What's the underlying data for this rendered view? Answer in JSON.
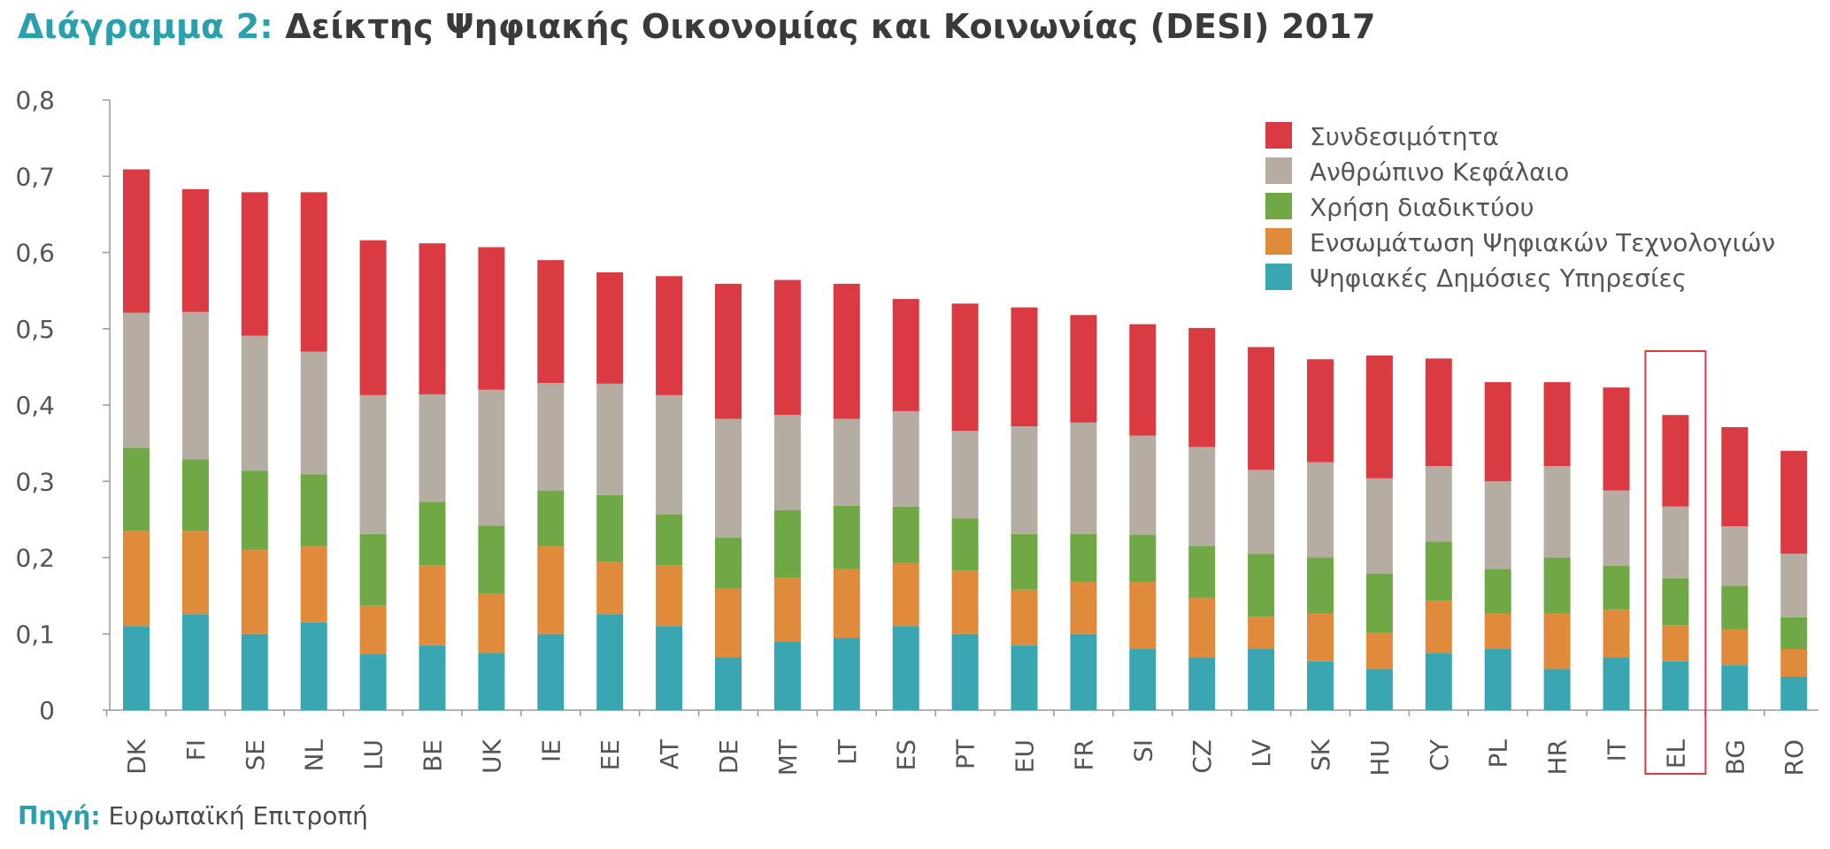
{
  "title": {
    "prefix": "Διάγραμμα 2:",
    "text": "Δείκτης Ψηφιακής Οικονομίας και Κοινωνίας (DESI) 2017"
  },
  "source": {
    "label": "Πηγή:",
    "text": "Ευρωπαϊκή Επιτροπή"
  },
  "chart_data": {
    "type": "bar",
    "stacked": true,
    "title": "Διάγραμμα 2: Δείκτης Ψηφιακής Οικονομίας και Κοινωνίας (DESI) 2017",
    "xlabel": "",
    "ylabel": "",
    "ylim": [
      0,
      0.8
    ],
    "yticks": [
      {
        "value": 0,
        "label": "0"
      },
      {
        "value": 0.1,
        "label": "0,1"
      },
      {
        "value": 0.2,
        "label": "0,2"
      },
      {
        "value": 0.3,
        "label": "0,3"
      },
      {
        "value": 0.4,
        "label": "0,4"
      },
      {
        "value": 0.5,
        "label": "0,5"
      },
      {
        "value": 0.6,
        "label": "0,6"
      },
      {
        "value": 0.7,
        "label": "0,7"
      },
      {
        "value": 0.8,
        "label": "0,8"
      }
    ],
    "grid": false,
    "legend_position": "top-right",
    "highlight_category": "EL",
    "categories": [
      "DK",
      "FI",
      "SE",
      "NL",
      "LU",
      "BE",
      "UK",
      "IE",
      "EE",
      "AT",
      "DE",
      "MT",
      "LT",
      "ES",
      "PT",
      "EU",
      "FR",
      "SI",
      "CZ",
      "LV",
      "SK",
      "HU",
      "CY",
      "PL",
      "HR",
      "IT",
      "EL",
      "BG",
      "RO"
    ],
    "series": [
      {
        "name": "Ψηφιακές Δημόσιες Υπηρεσίες",
        "color": "#3aa6b2",
        "values": [
          0.11,
          0.126,
          0.1,
          0.115,
          0.074,
          0.085,
          0.075,
          0.1,
          0.126,
          0.11,
          0.069,
          0.09,
          0.095,
          0.11,
          0.1,
          0.085,
          0.1,
          0.08,
          0.069,
          0.08,
          0.064,
          0.054,
          0.075,
          0.08,
          0.054,
          0.069,
          0.064,
          0.059,
          0.044
        ]
      },
      {
        "name": "Ενσωμάτωση Ψηφιακών Τεχνολογιών",
        "color": "#e08a3c",
        "values": [
          0.125,
          0.109,
          0.11,
          0.1,
          0.063,
          0.105,
          0.078,
          0.115,
          0.068,
          0.08,
          0.09,
          0.083,
          0.09,
          0.083,
          0.083,
          0.073,
          0.068,
          0.088,
          0.078,
          0.042,
          0.063,
          0.047,
          0.068,
          0.047,
          0.073,
          0.063,
          0.047,
          0.047,
          0.036
        ]
      },
      {
        "name": "Χρήση διαδικτύου",
        "color": "#70a845",
        "values": [
          0.109,
          0.094,
          0.104,
          0.094,
          0.094,
          0.083,
          0.089,
          0.073,
          0.088,
          0.067,
          0.067,
          0.089,
          0.083,
          0.074,
          0.068,
          0.073,
          0.063,
          0.062,
          0.068,
          0.083,
          0.073,
          0.078,
          0.078,
          0.058,
          0.073,
          0.057,
          0.062,
          0.057,
          0.042
        ]
      },
      {
        "name": "Ανθρώπινο Κεφάλαιο",
        "color": "#b5ada1",
        "values": [
          0.177,
          0.193,
          0.177,
          0.161,
          0.182,
          0.141,
          0.178,
          0.141,
          0.146,
          0.156,
          0.156,
          0.125,
          0.114,
          0.125,
          0.115,
          0.141,
          0.146,
          0.13,
          0.13,
          0.11,
          0.125,
          0.125,
          0.099,
          0.115,
          0.12,
          0.099,
          0.094,
          0.078,
          0.083
        ]
      },
      {
        "name": "Συνδεσιμότητα",
        "color": "#da3a41",
        "values": [
          0.188,
          0.161,
          0.188,
          0.209,
          0.203,
          0.198,
          0.187,
          0.161,
          0.146,
          0.156,
          0.177,
          0.177,
          0.177,
          0.147,
          0.167,
          0.156,
          0.141,
          0.146,
          0.156,
          0.161,
          0.135,
          0.161,
          0.141,
          0.13,
          0.11,
          0.135,
          0.12,
          0.13,
          0.135
        ]
      }
    ]
  }
}
